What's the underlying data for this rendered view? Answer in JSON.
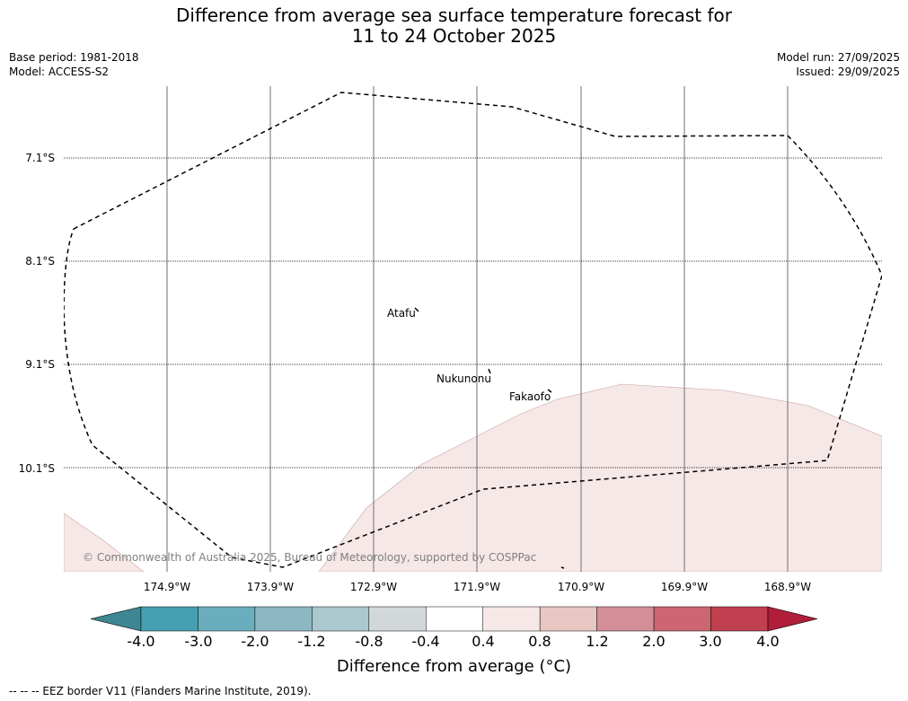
{
  "header": {
    "title_line1": "Difference from average sea surface temperature forecast for",
    "title_line2": "11 to 24 October 2025",
    "base_period": "Base period: 1981-2018",
    "model": "Model: ACCESS-S2",
    "model_run": "Model run: 27/09/2025",
    "issued": "Issued: 29/09/2025"
  },
  "map": {
    "lat_labels": [
      "7.1°S",
      "8.1°S",
      "9.1°S",
      "10.1°S"
    ],
    "lon_labels": [
      "174.9°W",
      "173.9°W",
      "172.9°W",
      "171.9°W",
      "170.9°W",
      "169.9°W",
      "168.9°W"
    ],
    "islands": [
      "Atafu",
      "Nukunonu",
      "Fakaofo"
    ],
    "copyright": "© Commonwealth of Australia 2025, Bureau of Meteorology, supported by COSPPac",
    "anomaly_fill_color": "#f5e8e7",
    "border_style": "dashed"
  },
  "colorbar": {
    "ticks": [
      "-4.0",
      "-3.0",
      "-2.0",
      "-1.2",
      "-0.8",
      "-0.4",
      "0.4",
      "0.8",
      "1.2",
      "2.0",
      "3.0",
      "4.0"
    ],
    "colors": [
      "#3d8793",
      "#45a1b1",
      "#6aadbc",
      "#8bb8c2",
      "#aac8cd",
      "#d2d8da",
      "#ffffff",
      "#f6e8e7",
      "#e8c7c3",
      "#d48e97",
      "#cc6670",
      "#c04050",
      "#b01e3a"
    ],
    "label": "Difference from average (°C)"
  },
  "footnote": "--  --  -- EEZ border V11 (Flanders Marine Institute, 2019)."
}
